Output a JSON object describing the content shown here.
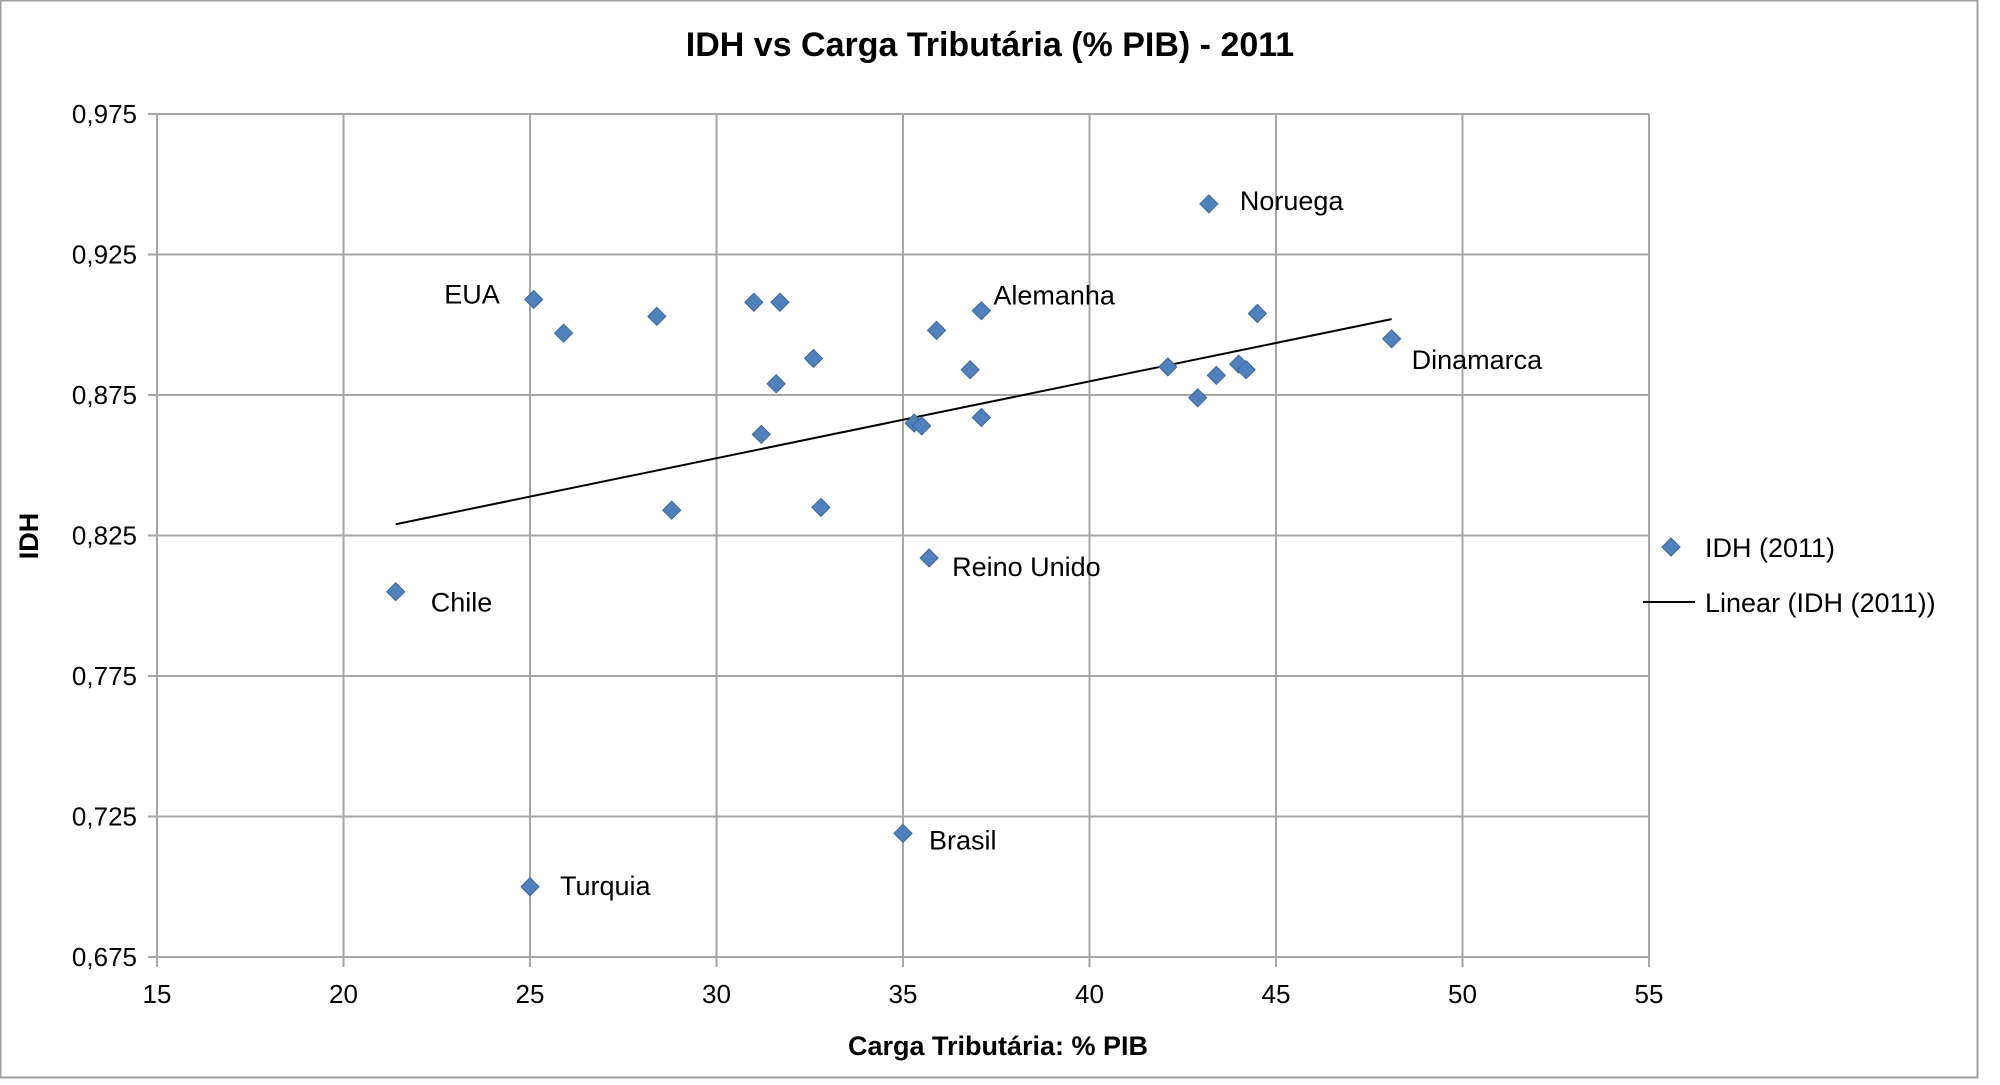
{
  "chart_data": {
    "type": "scatter",
    "title": "IDH vs Carga Tributária (% PIB) - 2011",
    "xlabel": "Carga Tributária: % PIB",
    "ylabel": "IDH",
    "xlim": [
      15,
      55
    ],
    "ylim": [
      0.675,
      0.975
    ],
    "xticks": [
      "15",
      "20",
      "25",
      "30",
      "35",
      "40",
      "45",
      "50",
      "55"
    ],
    "yticks": [
      "0,675",
      "0,725",
      "0,775",
      "0,825",
      "0,875",
      "0,925",
      "0,975"
    ],
    "grid": true,
    "legend_position": "right",
    "marker_color": "#4F81BD",
    "series": [
      {
        "name": "IDH (2011)",
        "points": [
          {
            "x": 21.4,
            "y": 0.805,
            "label": "Chile"
          },
          {
            "x": 25.1,
            "y": 0.909,
            "label": "EUA"
          },
          {
            "x": 25.9,
            "y": 0.897
          },
          {
            "x": 28.4,
            "y": 0.903
          },
          {
            "x": 28.8,
            "y": 0.834
          },
          {
            "x": 31.0,
            "y": 0.908
          },
          {
            "x": 31.7,
            "y": 0.908
          },
          {
            "x": 31.2,
            "y": 0.861
          },
          {
            "x": 31.6,
            "y": 0.879
          },
          {
            "x": 32.6,
            "y": 0.888
          },
          {
            "x": 32.8,
            "y": 0.835
          },
          {
            "x": 35.0,
            "y": 0.719,
            "label": "Brasil"
          },
          {
            "x": 25.0,
            "y": 0.7,
            "label": "Turquia"
          },
          {
            "x": 35.3,
            "y": 0.865
          },
          {
            "x": 35.5,
            "y": 0.864
          },
          {
            "x": 35.7,
            "y": 0.817,
            "label": "Reino Unido"
          },
          {
            "x": 35.9,
            "y": 0.898
          },
          {
            "x": 36.8,
            "y": 0.884
          },
          {
            "x": 37.1,
            "y": 0.905,
            "label": "Alemanha"
          },
          {
            "x": 37.1,
            "y": 0.867
          },
          {
            "x": 42.1,
            "y": 0.885
          },
          {
            "x": 42.9,
            "y": 0.874
          },
          {
            "x": 43.2,
            "y": 0.943,
            "label": "Noruega"
          },
          {
            "x": 43.4,
            "y": 0.882
          },
          {
            "x": 44.0,
            "y": 0.886
          },
          {
            "x": 44.2,
            "y": 0.884
          },
          {
            "x": 44.5,
            "y": 0.904
          },
          {
            "x": 48.1,
            "y": 0.895,
            "label": "Dinamarca"
          }
        ]
      }
    ],
    "trendline": {
      "name": "Linear (IDH (2011))",
      "type": "linear",
      "from": {
        "x": 21.4,
        "y": 0.829
      },
      "to": {
        "x": 48.1,
        "y": 0.902
      }
    }
  }
}
